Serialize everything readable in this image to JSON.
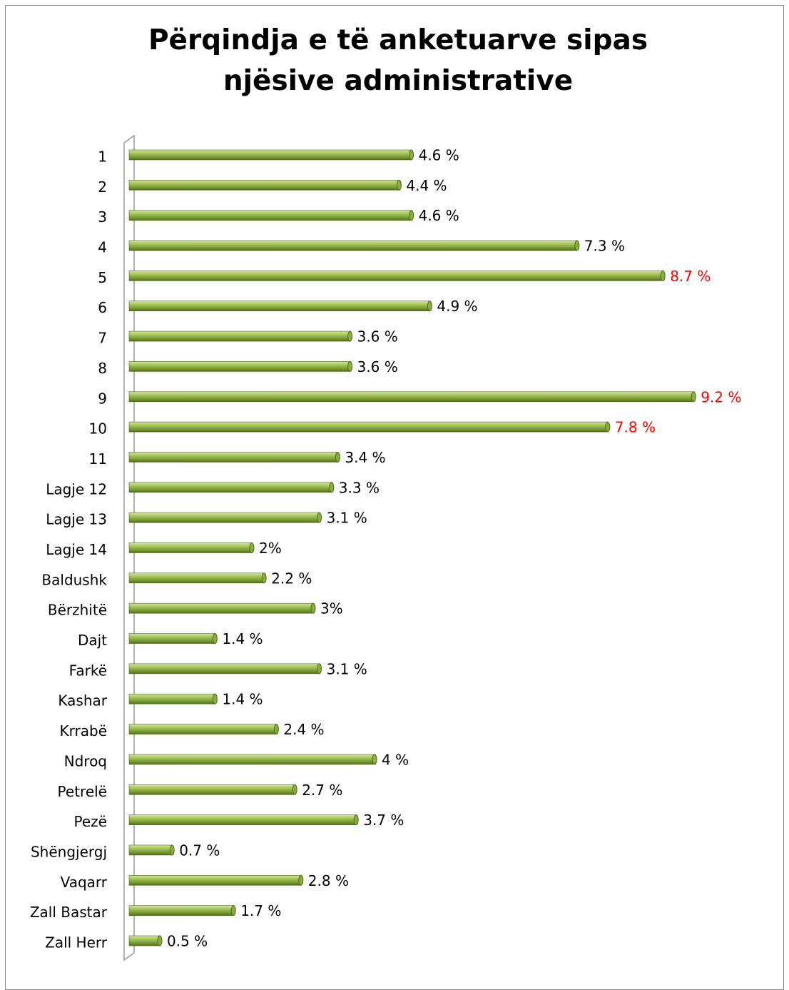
{
  "chart_data": {
    "type": "barh",
    "title": "Përqindja e të anketuarve sipas njësive administrative",
    "categories": [
      "1",
      "2",
      "3",
      "4",
      "5",
      "6",
      "7",
      "8",
      "9",
      "10",
      "11",
      "Lagje 12",
      "Lagje 13",
      "Lagje 14",
      "Baldushk",
      "Bërzhitë",
      "Dajt",
      "Farkë",
      "Kashar",
      "Krrabë",
      "Ndroq",
      "Petrelë",
      "Pezë",
      "Shëngjergj",
      "Vaqarr",
      "Zall Bastar",
      "Zall Herr"
    ],
    "values": [
      4.6,
      4.4,
      4.6,
      7.3,
      8.7,
      4.9,
      3.6,
      3.6,
      9.2,
      7.8,
      3.4,
      3.3,
      3.1,
      2,
      2.2,
      3,
      1.4,
      3.1,
      1.4,
      2.4,
      4,
      2.7,
      3.7,
      0.7,
      2.8,
      1.7,
      0.5
    ],
    "value_labels": [
      "4.6 %",
      "4.4 %",
      "4.6 %",
      "7.3 %",
      "8.7 %",
      "4.9 %",
      "3.6 %",
      "3.6 %",
      "9.2 %",
      "7.8 %",
      "3.4 %",
      "3.3 %",
      "3.1 %",
      "2%",
      "2.2 %",
      "3%",
      "1.4 %",
      "3.1 %",
      "1.4 %",
      "2.4 %",
      "4 %",
      "2.7 %",
      "3.7 %",
      "0.7 %",
      "2.8 %",
      "1.7 %",
      "0.5 %"
    ],
    "value_label_colors": [
      "#000000",
      "#000000",
      "#000000",
      "#000000",
      "#ff0000",
      "#000000",
      "#000000",
      "#000000",
      "#ff0000",
      "#ff0000",
      "#000000",
      "#000000",
      "#000000",
      "#000000",
      "#000000",
      "#000000",
      "#000000",
      "#000000",
      "#000000",
      "#000000",
      "#000000",
      "#000000",
      "#000000",
      "#000000",
      "#000000",
      "#000000",
      "#000000"
    ],
    "color": "#8aad3f"
  }
}
